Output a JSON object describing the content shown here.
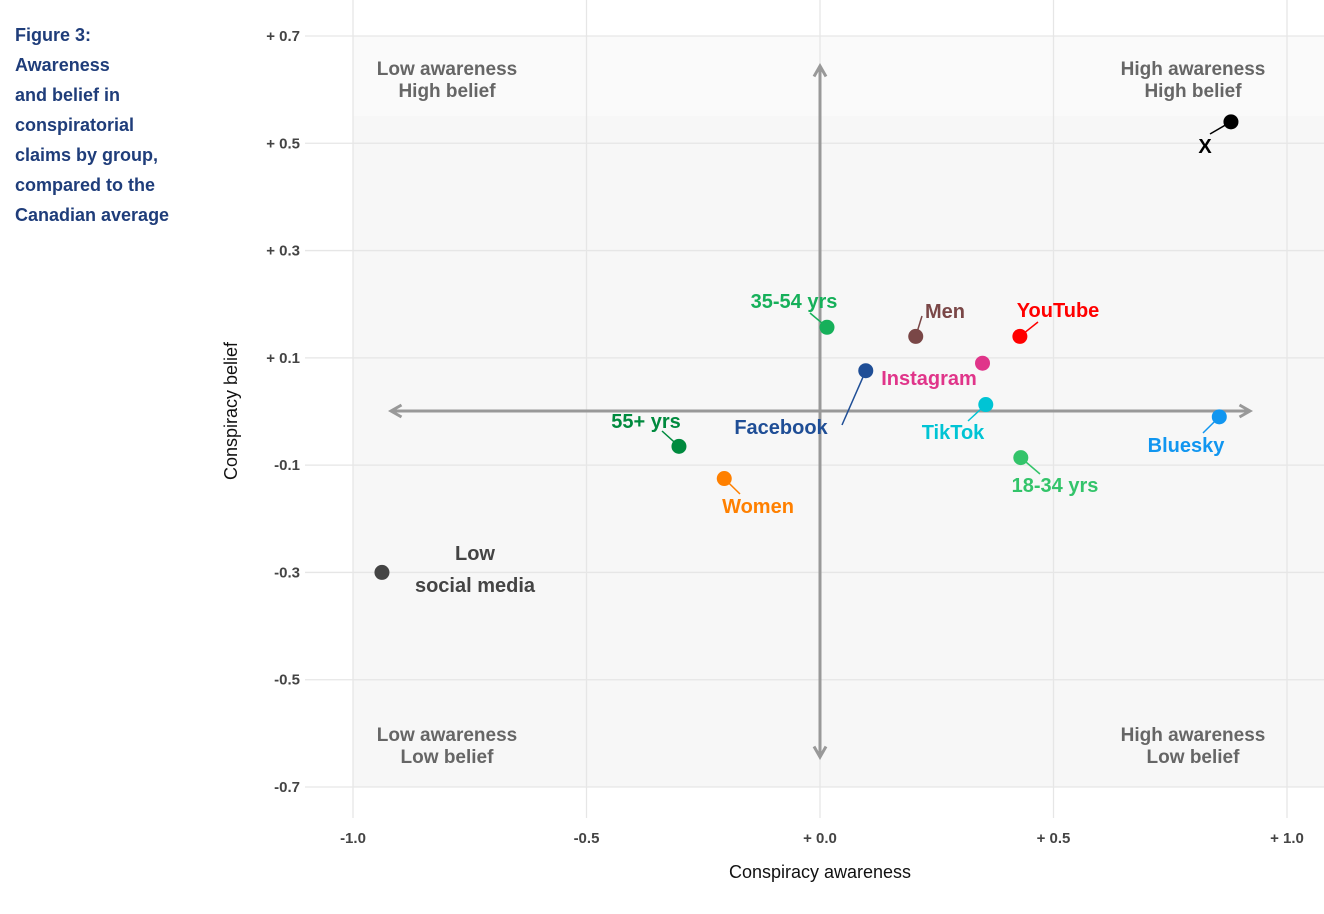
{
  "caption": [
    "Figure 3:",
    "Awareness",
    "and belief in",
    "conspiratorial",
    "claims by group,",
    "compared to the",
    "Canadian average"
  ],
  "chart_data": {
    "type": "scatter",
    "title": "Figure 3: Awareness and belief in conspiratorial claims by group, compared to the Canadian average",
    "xlabel": "Conspiracy awareness",
    "ylabel": "Conspiracy belief",
    "xlim": [
      -1.0,
      1.0
    ],
    "ylim": [
      -0.7,
      0.7
    ],
    "grid": true,
    "x_ticks": [
      {
        "v": -1.0,
        "label": "-1.0"
      },
      {
        "v": -0.5,
        "label": "-0.5"
      },
      {
        "v": 0,
        "label": "+ 0.0"
      },
      {
        "v": 0.5,
        "label": "+ 0.5"
      },
      {
        "v": 1.0,
        "label": "+ 1.0"
      }
    ],
    "y_ticks": [
      {
        "v": 0.7,
        "label": "+ 0.7"
      },
      {
        "v": 0.5,
        "label": "+ 0.5"
      },
      {
        "v": 0.3,
        "label": "+ 0.3"
      },
      {
        "v": 0.1,
        "label": "+ 0.1"
      },
      {
        "v": -0.1,
        "label": "-0.1"
      },
      {
        "v": -0.3,
        "label": "-0.3"
      },
      {
        "v": -0.5,
        "label": "-0.5"
      },
      {
        "v": -0.7,
        "label": "-0.7"
      }
    ],
    "quadrants": [
      {
        "lines": [
          "Low awareness",
          "High belief"
        ]
      },
      {
        "lines": [
          "High awareness",
          "High belief"
        ]
      },
      {
        "lines": [
          "Low awareness",
          "Low belief"
        ]
      },
      {
        "lines": [
          "High awareness",
          "Low belief"
        ]
      }
    ],
    "points": [
      {
        "label": "X",
        "x": 0.88,
        "y": 0.54,
        "color": "#000000"
      },
      {
        "label": "35-54 yrs",
        "x": 0.015,
        "y": 0.157,
        "color": "#16b05a"
      },
      {
        "label": "Men",
        "x": 0.205,
        "y": 0.14,
        "color": "#7a4747"
      },
      {
        "label": "YouTube",
        "x": 0.428,
        "y": 0.14,
        "color": "#ff0000"
      },
      {
        "label": "Instagram",
        "x": 0.348,
        "y": 0.09,
        "color": "#e0358a"
      },
      {
        "label": "Facebook",
        "x": 0.098,
        "y": 0.076,
        "color": "#1f4e96"
      },
      {
        "label": "TikTok",
        "x": 0.355,
        "y": 0.013,
        "color": "#00c4d4"
      },
      {
        "label": "Bluesky",
        "x": 0.855,
        "y": -0.01,
        "color": "#1196f0"
      },
      {
        "label": "55+ yrs",
        "x": -0.302,
        "y": -0.065,
        "color": "#008a3e"
      },
      {
        "label": "18-34 yrs",
        "x": 0.43,
        "y": -0.086,
        "color": "#33c46a"
      },
      {
        "label": "Women",
        "x": -0.205,
        "y": -0.125,
        "color": "#ff8000"
      },
      {
        "label": "Low social media",
        "x": -0.938,
        "y": -0.3,
        "color": "#444444"
      }
    ]
  }
}
